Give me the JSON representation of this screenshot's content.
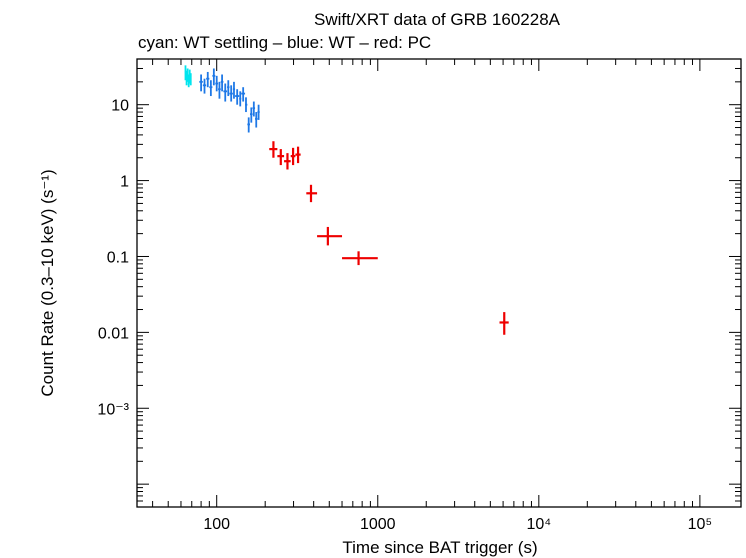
{
  "chart_data": {
    "type": "scatter",
    "title": "Swift/XRT data of GRB 160228A",
    "subtitle": "cyan: WT settling – blue: WT – red: PC",
    "xlabel": "Time since BAT trigger (s)",
    "ylabel": "Count Rate (0.3–10 keV) (s⁻¹)",
    "xscale": "log",
    "yscale": "log",
    "xlim": [
      32,
      180000
    ],
    "ylim": [
      5e-05,
      40
    ],
    "grid": false,
    "xticks": [
      {
        "value": 100,
        "label": "100"
      },
      {
        "value": 1000,
        "label": "1000"
      },
      {
        "value": 10000,
        "label": "10⁴"
      },
      {
        "value": 100000,
        "label": "10⁵"
      }
    ],
    "yticks": [
      {
        "value": 10,
        "label": "10"
      },
      {
        "value": 1,
        "label": "1"
      },
      {
        "value": 0.1,
        "label": "0.1"
      },
      {
        "value": 0.01,
        "label": "0.01"
      },
      {
        "value": 0.001,
        "label": "10⁻³"
      }
    ],
    "series": [
      {
        "name": "WT settling",
        "color": "#00e5ee",
        "points": [
          {
            "x": 64,
            "y": 27,
            "xlo": 63.5,
            "xhi": 64.5,
            "ylo": 21,
            "yhi": 33
          },
          {
            "x": 65,
            "y": 23,
            "xlo": 64.5,
            "xhi": 65.5,
            "ylo": 18,
            "yhi": 28
          },
          {
            "x": 66,
            "y": 25,
            "xlo": 65.5,
            "xhi": 66.5,
            "ylo": 20,
            "yhi": 30
          },
          {
            "x": 67,
            "y": 21,
            "xlo": 66.5,
            "xhi": 67.5,
            "ylo": 17,
            "yhi": 25
          },
          {
            "x": 68,
            "y": 24,
            "xlo": 67.5,
            "xhi": 68.5,
            "ylo": 19,
            "yhi": 29
          },
          {
            "x": 69,
            "y": 22,
            "xlo": 68.5,
            "xhi": 69.5,
            "ylo": 18,
            "yhi": 26
          }
        ]
      },
      {
        "name": "WT",
        "color": "#1e78e6",
        "points": [
          {
            "x": 80,
            "y": 20,
            "xlo": 78,
            "xhi": 82,
            "ylo": 15,
            "yhi": 25
          },
          {
            "x": 84,
            "y": 18,
            "xlo": 82,
            "xhi": 86,
            "ylo": 14,
            "yhi": 22
          },
          {
            "x": 88,
            "y": 22,
            "xlo": 86,
            "xhi": 90,
            "ylo": 17,
            "yhi": 27
          },
          {
            "x": 92,
            "y": 17,
            "xlo": 90,
            "xhi": 94,
            "ylo": 13,
            "yhi": 21
          },
          {
            "x": 96,
            "y": 24,
            "xlo": 94,
            "xhi": 98,
            "ylo": 18,
            "yhi": 30
          },
          {
            "x": 100,
            "y": 19,
            "xlo": 98,
            "xhi": 102,
            "ylo": 15,
            "yhi": 24
          },
          {
            "x": 104,
            "y": 16,
            "xlo": 102,
            "xhi": 106,
            "ylo": 12,
            "yhi": 20
          },
          {
            "x": 108,
            "y": 20,
            "xlo": 106,
            "xhi": 110,
            "ylo": 15,
            "yhi": 25
          },
          {
            "x": 113,
            "y": 15,
            "xlo": 110,
            "xhi": 116,
            "ylo": 11,
            "yhi": 19
          },
          {
            "x": 118,
            "y": 17,
            "xlo": 116,
            "xhi": 120,
            "ylo": 13,
            "yhi": 21
          },
          {
            "x": 123,
            "y": 14,
            "xlo": 120,
            "xhi": 126,
            "ylo": 11,
            "yhi": 18
          },
          {
            "x": 128,
            "y": 16,
            "xlo": 126,
            "xhi": 130,
            "ylo": 12,
            "yhi": 20
          },
          {
            "x": 134,
            "y": 13,
            "xlo": 130,
            "xhi": 138,
            "ylo": 10,
            "yhi": 16
          },
          {
            "x": 140,
            "y": 12,
            "xlo": 138,
            "xhi": 142,
            "ylo": 9.5,
            "yhi": 15
          },
          {
            "x": 146,
            "y": 14,
            "xlo": 142,
            "xhi": 150,
            "ylo": 11,
            "yhi": 17
          },
          {
            "x": 152,
            "y": 10,
            "xlo": 150,
            "xhi": 155,
            "ylo": 8,
            "yhi": 12.5
          },
          {
            "x": 158,
            "y": 5.5,
            "xlo": 155,
            "xhi": 161,
            "ylo": 4.3,
            "yhi": 6.8
          },
          {
            "x": 164,
            "y": 7.5,
            "xlo": 161,
            "xhi": 167,
            "ylo": 5.8,
            "yhi": 9.2
          },
          {
            "x": 170,
            "y": 9,
            "xlo": 167,
            "xhi": 173,
            "ylo": 7,
            "yhi": 11
          },
          {
            "x": 176,
            "y": 6.5,
            "xlo": 173,
            "xhi": 179,
            "ylo": 5,
            "yhi": 8
          },
          {
            "x": 182,
            "y": 8,
            "xlo": 179,
            "xhi": 185,
            "ylo": 6.3,
            "yhi": 10
          }
        ]
      },
      {
        "name": "PC",
        "color": "#ee0000",
        "points": [
          {
            "x": 225,
            "y": 2.6,
            "xlo": 212,
            "xhi": 238,
            "ylo": 2.0,
            "yhi": 3.3
          },
          {
            "x": 250,
            "y": 2.1,
            "xlo": 238,
            "xhi": 262,
            "ylo": 1.6,
            "yhi": 2.6
          },
          {
            "x": 275,
            "y": 1.8,
            "xlo": 262,
            "xhi": 288,
            "ylo": 1.4,
            "yhi": 2.3
          },
          {
            "x": 298,
            "y": 2.1,
            "xlo": 288,
            "xhi": 308,
            "ylo": 1.6,
            "yhi": 2.7
          },
          {
            "x": 320,
            "y": 2.2,
            "xlo": 308,
            "xhi": 332,
            "ylo": 1.7,
            "yhi": 2.8
          },
          {
            "x": 385,
            "y": 0.68,
            "xlo": 360,
            "xhi": 420,
            "ylo": 0.52,
            "yhi": 0.88
          },
          {
            "x": 490,
            "y": 0.185,
            "xlo": 420,
            "xhi": 600,
            "ylo": 0.14,
            "yhi": 0.245
          },
          {
            "x": 760,
            "y": 0.095,
            "xlo": 600,
            "xhi": 1000,
            "ylo": 0.077,
            "yhi": 0.117
          },
          {
            "x": 6100,
            "y": 0.0135,
            "xlo": 5700,
            "xhi": 6500,
            "ylo": 0.0093,
            "yhi": 0.0185
          }
        ]
      }
    ]
  }
}
